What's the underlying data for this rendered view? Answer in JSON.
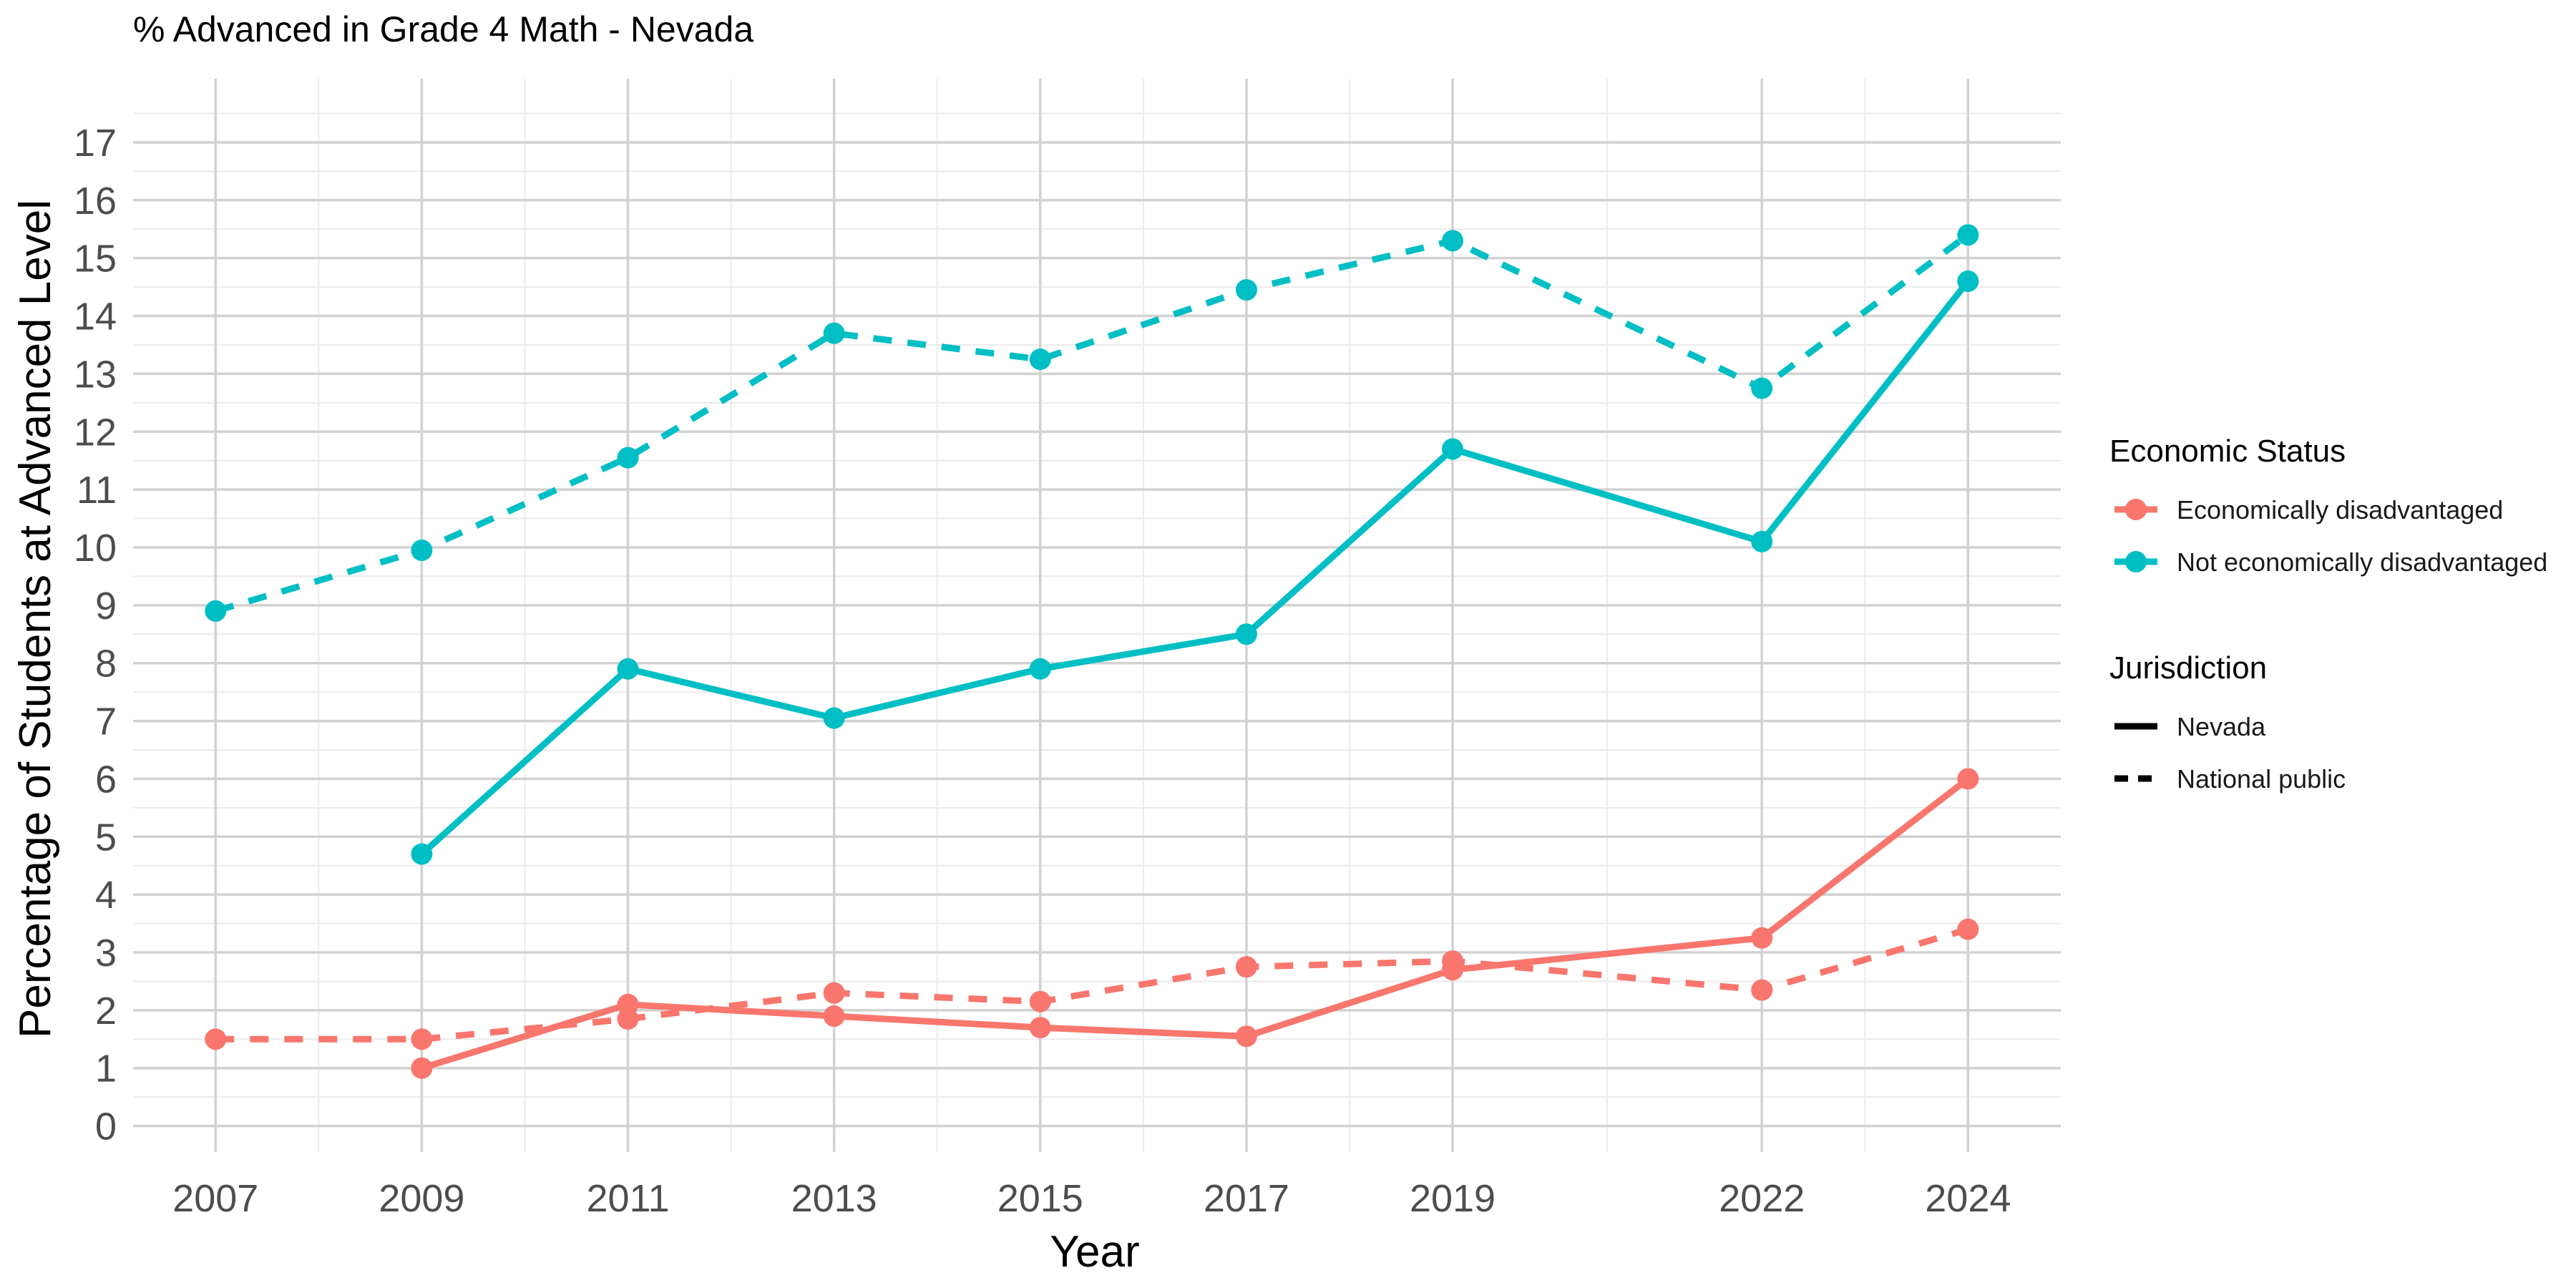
{
  "chart_data": {
    "type": "line",
    "title": "% Advanced in Grade 4 Math - Nevada",
    "xlabel": "Year",
    "ylabel": "Percentage of Students at Advanced Level",
    "x_ticks": [
      2007,
      2009,
      2011,
      2013,
      2015,
      2017,
      2019,
      2022,
      2024
    ],
    "xlim": [
      2006.2,
      2024.9
    ],
    "y_ticks": [
      0,
      1,
      2,
      3,
      4,
      5,
      6,
      7,
      8,
      9,
      10,
      11,
      12,
      13,
      14,
      15,
      16,
      17
    ],
    "ylim": [
      -0.45,
      18.1
    ],
    "grid": true,
    "legend_position": "right",
    "legend": {
      "color_title": "Economic Status",
      "color_entries": [
        {
          "label": "Economically disadvantaged",
          "color": "#F8766D"
        },
        {
          "label": "Not economically disadvantaged",
          "color": "#00BFC4"
        }
      ],
      "linetype_title": "Jurisdiction",
      "linetype_entries": [
        {
          "label": "Nevada",
          "dash": "solid"
        },
        {
          "label": "National public",
          "dash": "dashed"
        }
      ]
    },
    "series": [
      {
        "status": "Economically disadvantaged",
        "jurisdiction": "Nevada",
        "color": "#F8766D",
        "dash": "solid",
        "x": [
          2009,
          2011,
          2013,
          2015,
          2017,
          2019,
          2022,
          2024
        ],
        "y": [
          1.0,
          2.1,
          1.9,
          1.7,
          1.55,
          2.7,
          3.25,
          6.0
        ]
      },
      {
        "status": "Economically disadvantaged",
        "jurisdiction": "National public",
        "color": "#F8766D",
        "dash": "dashed",
        "x": [
          2007,
          2009,
          2011,
          2013,
          2015,
          2017,
          2019,
          2022,
          2024
        ],
        "y": [
          1.5,
          1.5,
          1.85,
          2.3,
          2.15,
          2.75,
          2.85,
          2.35,
          3.4
        ]
      },
      {
        "status": "Not economically disadvantaged",
        "jurisdiction": "Nevada",
        "color": "#00BFC4",
        "dash": "solid",
        "x": [
          2009,
          2011,
          2013,
          2015,
          2017,
          2019,
          2022,
          2024
        ],
        "y": [
          4.7,
          7.9,
          7.05,
          7.9,
          8.5,
          11.7,
          10.1,
          14.6
        ]
      },
      {
        "status": "Not economically disadvantaged",
        "jurisdiction": "National public",
        "color": "#00BFC4",
        "dash": "dashed",
        "x": [
          2007,
          2009,
          2011,
          2013,
          2015,
          2017,
          2019,
          2022,
          2024
        ],
        "y": [
          8.9,
          9.95,
          11.55,
          13.7,
          13.25,
          14.45,
          15.3,
          12.75,
          15.4
        ]
      }
    ]
  }
}
